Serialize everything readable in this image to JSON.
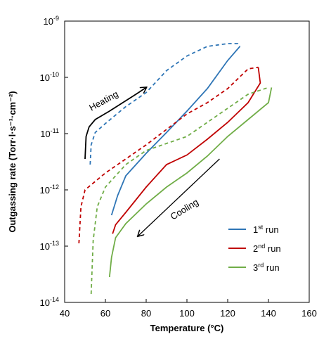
{
  "chart_data": {
    "type": "line",
    "xlabel": "Temperature (°C)",
    "ylabel": "Outgassing rate (Torr·l·s⁻¹·cm⁻²)",
    "xlim": [
      40,
      160
    ],
    "ylim_exp": [
      -14,
      -9
    ],
    "y_scale": "log",
    "x_ticks": [
      40,
      60,
      80,
      100,
      120,
      140,
      160
    ],
    "y_tick_exponents": [
      -9,
      -10,
      -11,
      -12,
      -13,
      -14
    ],
    "y_tick_base": "10",
    "grid": false,
    "legend_position": "bottom-right",
    "annotations": [
      {
        "text": "Heating",
        "arrow_direction": "up-right"
      },
      {
        "text": "Cooling",
        "arrow_direction": "down-left"
      }
    ],
    "series": [
      {
        "name_base": "1",
        "name_sup": "st",
        "name_rest": " run",
        "color": "#2e75b6",
        "heating": [
          [
            52.5,
            -11.55
          ],
          [
            53,
            -11.2
          ],
          [
            55,
            -10.98
          ],
          [
            60,
            -10.82
          ],
          [
            70,
            -10.52
          ],
          [
            80,
            -10.27
          ],
          [
            90,
            -9.88
          ],
          [
            100,
            -9.62
          ],
          [
            110,
            -9.45
          ],
          [
            120,
            -9.4
          ],
          [
            125,
            -9.4
          ],
          [
            126,
            -9.45
          ]
        ],
        "cooling": [
          [
            126,
            -9.45
          ],
          [
            120,
            -9.7
          ],
          [
            110,
            -10.2
          ],
          [
            100,
            -10.6
          ],
          [
            90,
            -10.98
          ],
          [
            80,
            -11.35
          ],
          [
            70,
            -11.75
          ],
          [
            66,
            -12.1
          ],
          [
            63,
            -12.45
          ]
        ]
      },
      {
        "name_base": "2",
        "name_sup": "nd",
        "name_rest": " run",
        "color": "#c00000",
        "heating": [
          [
            47,
            -12.95
          ],
          [
            48,
            -12.3
          ],
          [
            50,
            -12.0
          ],
          [
            55,
            -11.85
          ],
          [
            60,
            -11.7
          ],
          [
            80,
            -11.2
          ],
          [
            100,
            -10.65
          ],
          [
            110,
            -10.45
          ],
          [
            120,
            -10.2
          ],
          [
            130,
            -9.85
          ],
          [
            135,
            -9.82
          ]
        ],
        "cooling": [
          [
            135,
            -9.82
          ],
          [
            136,
            -10.1
          ],
          [
            130,
            -10.45
          ],
          [
            120,
            -10.8
          ],
          [
            110,
            -11.1
          ],
          [
            100,
            -11.38
          ],
          [
            90,
            -11.55
          ],
          [
            80,
            -11.95
          ],
          [
            70,
            -12.4
          ],
          [
            65,
            -12.62
          ],
          [
            63.5,
            -12.78
          ]
        ]
      },
      {
        "name_base": "3",
        "name_sup": "rd",
        "name_rest": " run",
        "color": "#70ad47",
        "heating": [
          [
            53,
            -13.85
          ],
          [
            54,
            -12.9
          ],
          [
            56,
            -12.3
          ],
          [
            60,
            -11.95
          ],
          [
            70,
            -11.55
          ],
          [
            80,
            -11.3
          ],
          [
            100,
            -11.05
          ],
          [
            110,
            -10.8
          ],
          [
            120,
            -10.55
          ],
          [
            130,
            -10.3
          ],
          [
            140,
            -10.18
          ]
        ],
        "cooling": [
          [
            141.5,
            -10.18
          ],
          [
            140,
            -10.45
          ],
          [
            130,
            -10.75
          ],
          [
            120,
            -11.05
          ],
          [
            110,
            -11.4
          ],
          [
            100,
            -11.7
          ],
          [
            90,
            -11.95
          ],
          [
            80,
            -12.25
          ],
          [
            70,
            -12.6
          ],
          [
            65,
            -12.85
          ],
          [
            63,
            -13.2
          ],
          [
            62,
            -13.55
          ]
        ]
      }
    ],
    "reference_arrows": {
      "heating": {
        "color": "#000000",
        "curve": [
          [
            50,
            -11.45
          ],
          [
            50.5,
            -11.05
          ],
          [
            52,
            -10.88
          ],
          [
            55,
            -10.75
          ],
          [
            62,
            -10.6
          ],
          [
            75,
            -10.3
          ],
          [
            80,
            -10.18
          ]
        ]
      },
      "cooling": {
        "color": "#000000",
        "line": [
          [
            116,
            -11.45
          ],
          [
            76,
            -12.82
          ]
        ]
      }
    }
  }
}
